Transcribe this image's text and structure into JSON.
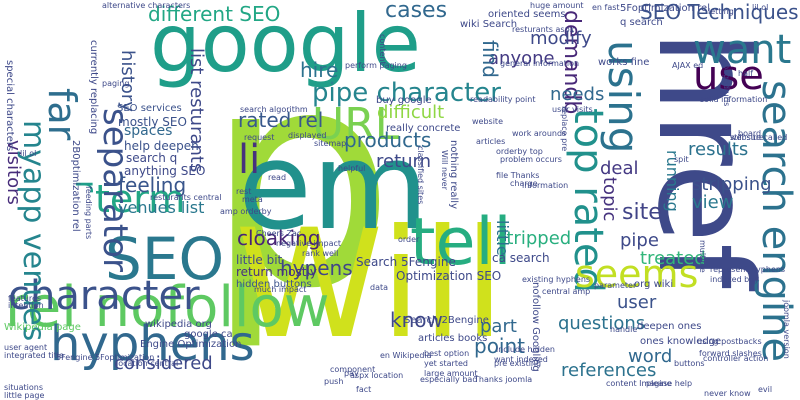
{
  "words": [
    {
      "text": "p",
      "color": "#a0da39"
    },
    {
      "text": "Will",
      "color": "#d0e11c"
    },
    {
      "text": "em",
      "color": "#21918c"
    },
    {
      "text": "href",
      "color": "#3e4989"
    },
    {
      "text": "google",
      "color": "#1f9e89"
    },
    {
      "text": "tell",
      "color": "#26ad81"
    },
    {
      "text": "SEO",
      "color": "#2a788e"
    },
    {
      "text": "rel nofollow",
      "color": "#5ec962"
    },
    {
      "text": "hyphens",
      "color": "#31688e"
    },
    {
      "text": "character",
      "color": "#3b528b"
    },
    {
      "text": "URL",
      "color": "#7ad151"
    },
    {
      "text": "term",
      "color": "#21a685"
    },
    {
      "text": "li",
      "color": "#46327e"
    },
    {
      "text": "want",
      "color": "#2a788e"
    },
    {
      "text": "use",
      "color": "#440154"
    },
    {
      "text": "using",
      "color": "#2c728e"
    },
    {
      "text": "search engine",
      "color": "#2c728e"
    },
    {
      "text": "top rated",
      "color": "#21918c"
    },
    {
      "text": "seems",
      "color": "#c2df23"
    },
    {
      "text": "pipe character",
      "color": "#25858e"
    },
    {
      "text": "far",
      "color": "#2e6e8e"
    },
    {
      "text": "myapp venues",
      "color": "#25858e"
    },
    {
      "text": "separator",
      "color": "#3b528b"
    },
    {
      "text": "r",
      "color": "#1f9e89"
    },
    {
      "text": "different SEO",
      "color": "#22a785"
    },
    {
      "text": "cases",
      "color": "#31688e"
    },
    {
      "text": "demandb",
      "color": "#482878"
    },
    {
      "text": "hire",
      "color": "#2c728e"
    },
    {
      "text": "SEO Techniques",
      "color": "#3b528b"
    },
    {
      "text": "rated rel",
      "color": "#38588c"
    },
    {
      "text": "modify",
      "color": "#3e4989"
    },
    {
      "text": "anyone",
      "color": "#443a83"
    },
    {
      "text": "find",
      "color": "#31688e"
    },
    {
      "text": "history",
      "color": "#3b528b"
    },
    {
      "text": "visitors",
      "color": "#472d7b"
    },
    {
      "text": "venues list",
      "color": "#2a788e"
    },
    {
      "text": "feeling",
      "color": "#39568c"
    },
    {
      "text": "list resturants",
      "color": "#3e4989"
    },
    {
      "text": "cloaking",
      "color": "#482475"
    },
    {
      "text": "products",
      "color": "#31688e"
    },
    {
      "text": "return",
      "color": "#3e4989"
    },
    {
      "text": "difficult",
      "color": "#8fd744"
    },
    {
      "text": "needs",
      "color": "#31688e"
    },
    {
      "text": "results",
      "color": "#2c728e"
    },
    {
      "text": "deal",
      "color": "#443983"
    },
    {
      "text": "topic",
      "color": "#46327e"
    },
    {
      "text": "running",
      "color": "#2a788e"
    },
    {
      "text": "stripping",
      "color": "#3b528b"
    },
    {
      "text": "view",
      "color": "#2a788e"
    },
    {
      "text": "site",
      "color": "#414487"
    },
    {
      "text": "treated",
      "color": "#32b67a"
    },
    {
      "text": "stripped",
      "color": "#29af7f"
    },
    {
      "text": "pipe",
      "color": "#3e4989"
    },
    {
      "text": "hypens",
      "color": "#404688"
    },
    {
      "text": "know",
      "color": "#3f4788"
    },
    {
      "text": "part",
      "color": "#31688e"
    },
    {
      "text": "point",
      "color": "#31688e"
    },
    {
      "text": "user",
      "color": "#3b528b"
    },
    {
      "text": "questions",
      "color": "#2c728e"
    },
    {
      "text": "word",
      "color": "#31688e"
    },
    {
      "text": "references",
      "color": "#2c728e"
    },
    {
      "text": "considered",
      "color": "#3e4989"
    },
    {
      "text": "little",
      "color": "#2c728e"
    },
    {
      "text": "spaces",
      "color": "#31688e"
    },
    {
      "text": "help deepen",
      "color": "#3b528b"
    },
    {
      "text": "mostly SEO",
      "color": "#3b528b"
    },
    {
      "text": "anything SEO",
      "color": "#3e4989"
    },
    {
      "text": "search q",
      "color": "#3e4989"
    },
    {
      "text": "SEO services",
      "color": "#3b528b"
    },
    {
      "text": "little bit",
      "color": "#3e4989"
    },
    {
      "text": "return mostly",
      "color": "#46327e"
    },
    {
      "text": "hidden buttons",
      "color": "#3b528b"
    },
    {
      "text": "Search 5Fengine",
      "color": "#3e4989"
    },
    {
      "text": "Search 2Bengine",
      "color": "#3e4989"
    },
    {
      "text": "Optimization SEO",
      "color": "#3e4989"
    },
    {
      "text": "articles books",
      "color": "#3e4989"
    },
    {
      "text": "ca search",
      "color": "#3e4989"
    },
    {
      "text": "org wiki",
      "color": "#3e4989"
    },
    {
      "text": "wikipedia org",
      "color": "#3e4989"
    },
    {
      "text": "google ca",
      "color": "#3e4989"
    },
    {
      "text": "Engine Optimization",
      "color": "#3e4989"
    },
    {
      "text": "Wikipedia page",
      "color": "#5ec962"
    },
    {
      "text": "nofollow Googling",
      "color": "#3e4989"
    },
    {
      "text": "deepen ones",
      "color": "#3e4989"
    },
    {
      "text": "ones knowledge",
      "color": "#3e4989"
    },
    {
      "text": "5Foptimization rel",
      "color": "#3e4989"
    },
    {
      "text": "wiki Search",
      "color": "#3e4989"
    },
    {
      "text": "oriented seems",
      "color": "#3e4989"
    },
    {
      "text": "en fast",
      "color": "#3e4989"
    },
    {
      "text": "q search",
      "color": "#3e4989"
    },
    {
      "text": "works fine",
      "color": "#3e4989"
    },
    {
      "text": "AJAX ed",
      "color": "#3e4989"
    },
    {
      "text": "2B0ptimization rel",
      "color": "#3e4989"
    },
    {
      "text": "special characters",
      "color": "#3e4989"
    },
    {
      "text": "currently replacing",
      "color": "#3e4989"
    },
    {
      "text": "feeding parts",
      "color": "#3e4989"
    },
    {
      "text": "general information",
      "color": "#3e4989"
    },
    {
      "text": "resturants aspx",
      "color": "#3e4989"
    },
    {
      "text": "alternative characters",
      "color": "#3e4989"
    },
    {
      "text": "huge amount",
      "color": "#3e4989"
    },
    {
      "text": "buy google",
      "color": "#3e4989"
    },
    {
      "text": "really concrete",
      "color": "#3e4989"
    },
    {
      "text": "nothing really",
      "color": "#3e4989"
    },
    {
      "text": "problem occurs",
      "color": "#3e4989"
    },
    {
      "text": "file Thanks",
      "color": "#3e4989"
    },
    {
      "text": "orderby top",
      "color": "#3e4989"
    },
    {
      "text": "include hidden",
      "color": "#3e4989"
    },
    {
      "text": "want indexed",
      "color": "#3e4989"
    },
    {
      "text": "en Wikipedia",
      "color": "#3e4989"
    },
    {
      "text": "best option",
      "color": "#3e4989"
    },
    {
      "text": "yet started",
      "color": "#3e4989"
    },
    {
      "text": "large amount",
      "color": "#3e4989"
    },
    {
      "text": "especially bad",
      "color": "#3e4989"
    },
    {
      "text": "Thanks joomla",
      "color": "#3e4989"
    },
    {
      "text": "content Imagine",
      "color": "#3e4989"
    },
    {
      "text": "please help",
      "color": "#3e4989"
    },
    {
      "text": "never know",
      "color": "#3e4989"
    },
    {
      "text": "using postbacks",
      "color": "#3e4989"
    },
    {
      "text": "forward slashes",
      "color": "#3e4989"
    },
    {
      "text": "controller action",
      "color": "#3e4989"
    },
    {
      "text": "represent hyphens",
      "color": "#3e4989"
    },
    {
      "text": "indexed buy",
      "color": "#3e4989"
    },
    {
      "text": "joomla version",
      "color": "#3e4989"
    },
    {
      "text": "5Fengine 5Foptimization",
      "color": "#3e4989"
    },
    {
      "text": "integrated title",
      "color": "#3e4989"
    },
    {
      "text": "user agent",
      "color": "#3e4989"
    },
    {
      "text": "rank well",
      "color": "#3e4989"
    },
    {
      "text": "Cheers Zac",
      "color": "#3e4989"
    },
    {
      "text": "negative impact",
      "color": "#3e4989"
    },
    {
      "text": "much impact",
      "color": "#3e4989"
    },
    {
      "text": "paged urls",
      "color": "#3e4989"
    },
    {
      "text": "solid information",
      "color": "#3e4989"
    },
    {
      "text": "search algorithm",
      "color": "#3e4989"
    },
    {
      "text": "location central",
      "color": "#3e4989"
    },
    {
      "text": "resturants central",
      "color": "#3e4989"
    },
    {
      "text": "perform paging",
      "color": "#3e4989"
    },
    {
      "text": "work arounds",
      "color": "#3e4989"
    },
    {
      "text": "Will never",
      "color": "#3e4989"
    },
    {
      "text": "classified sites",
      "color": "#3e4989"
    },
    {
      "text": "readability point",
      "color": "#3e4989"
    },
    {
      "text": "website called",
      "color": "#3e4989"
    },
    {
      "text": "lil ol",
      "color": "#3e4989"
    },
    {
      "text": "user visits",
      "color": "#3e4989"
    },
    {
      "text": "replace pre",
      "color": "#3e4989"
    },
    {
      "text": "still sure",
      "color": "#3e4989"
    },
    {
      "text": "lil ol",
      "color": "#3e4989"
    },
    {
      "text": "little page",
      "color": "#3e4989"
    },
    {
      "text": "situations",
      "color": "#3e4989"
    },
    {
      "text": "request",
      "color": "#3e4989"
    },
    {
      "text": "sitemap",
      "color": "#3e4989"
    },
    {
      "text": "helpful",
      "color": "#3e4989"
    },
    {
      "text": "intention",
      "color": "#3e4989"
    },
    {
      "text": "features",
      "color": "#3e4989"
    },
    {
      "text": "fact",
      "color": "#3e4989"
    },
    {
      "text": "push",
      "color": "#3e4989"
    },
    {
      "text": "pay",
      "color": "#3e4989"
    },
    {
      "text": "data",
      "color": "#3e4989"
    },
    {
      "text": "order",
      "color": "#3e4989"
    },
    {
      "text": "read",
      "color": "#3e4989"
    },
    {
      "text": "rest",
      "color": "#3e4989"
    },
    {
      "text": "meta",
      "color": "#3e4989"
    },
    {
      "text": "charge",
      "color": "#3e4989"
    },
    {
      "text": "spit",
      "color": "#3e4989"
    },
    {
      "text": "half",
      "color": "#3e4989"
    },
    {
      "text": "evil",
      "color": "#3e4989"
    },
    {
      "text": "buttons",
      "color": "#3e4989"
    },
    {
      "text": "handle",
      "color": "#3e4989"
    },
    {
      "text": "component",
      "color": "#3e4989"
    },
    {
      "text": "parameter",
      "color": "#3e4989"
    },
    {
      "text": "website",
      "color": "#3e4989"
    },
    {
      "text": "content",
      "color": "#3e4989"
    },
    {
      "text": "paging",
      "color": "#3e4989"
    },
    {
      "text": "letting",
      "color": "#3e4989"
    },
    {
      "text": "board",
      "color": "#3e4989"
    },
    {
      "text": "articles",
      "color": "#3e4989"
    },
    {
      "text": "information",
      "color": "#3e4989"
    },
    {
      "text": "displayed",
      "color": "#3e4989"
    },
    {
      "text": "aspx location",
      "color": "#3e4989"
    },
    {
      "text": "amp orderby",
      "color": "#3e4989"
    },
    {
      "text": "pre existing",
      "color": "#3e4989"
    },
    {
      "text": "existing hyphens",
      "color": "#3e4989"
    },
    {
      "text": "central amp",
      "color": "#3e4989"
    },
    {
      "text": "multiple",
      "color": "#3e4989"
    },
    {
      "text": "didnt yet",
      "color": "#3e4989"
    },
    {
      "text": "due",
      "color": "#3e4989"
    }
  ]
}
